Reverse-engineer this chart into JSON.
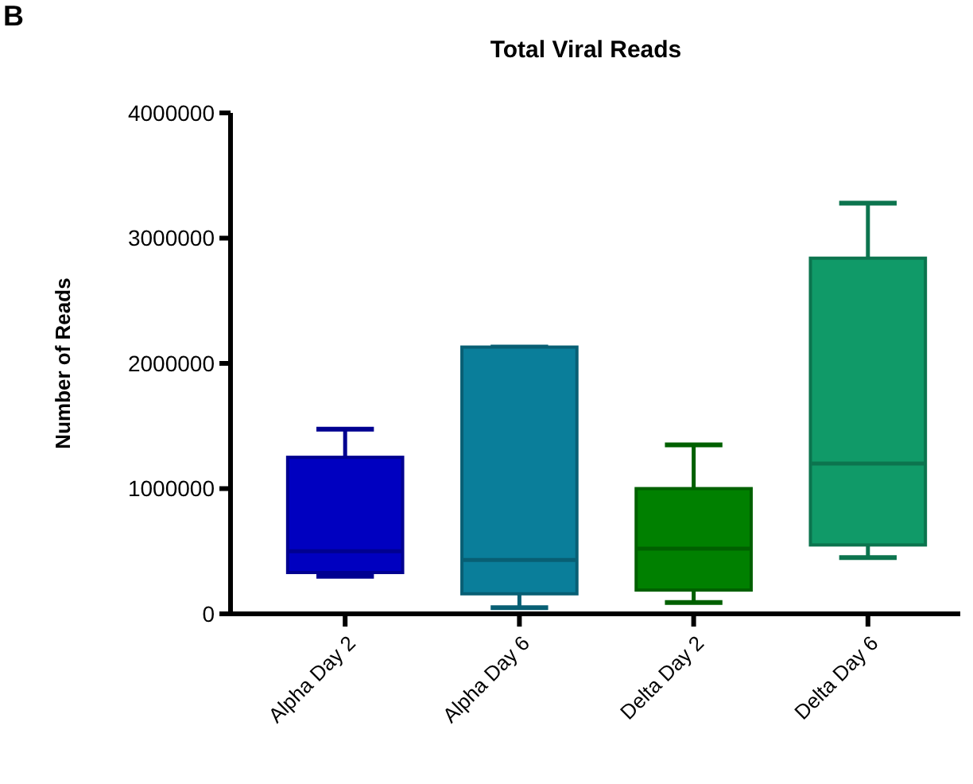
{
  "chart_data": {
    "type": "box",
    "title": "Total Viral Reads",
    "ylabel": "Number of Reads",
    "annotations": [
      "B"
    ],
    "categories": [
      "Alpha Day 2",
      "Alpha Day 6",
      "Delta Day 2",
      "Delta Day 6"
    ],
    "colors": [
      "#0000c0",
      "#0a7e9a",
      "#008000",
      "#109a68"
    ],
    "boxes": [
      {
        "low": 300000,
        "q1": 330000,
        "median": 500000,
        "q3": 1250000,
        "high": 1475000
      },
      {
        "low": 50000,
        "q1": 160000,
        "median": 430000,
        "q3": 2130000,
        "high": 2130000
      },
      {
        "low": 90000,
        "q1": 190000,
        "median": 520000,
        "q3": 1000000,
        "high": 1350000
      },
      {
        "low": 450000,
        "q1": 550000,
        "median": 1200000,
        "q3": 2840000,
        "high": 3280000
      }
    ],
    "ylim": [
      0,
      4000000
    ],
    "yticks": [
      0,
      1000000,
      2000000,
      3000000,
      4000000
    ],
    "grid": false
  }
}
